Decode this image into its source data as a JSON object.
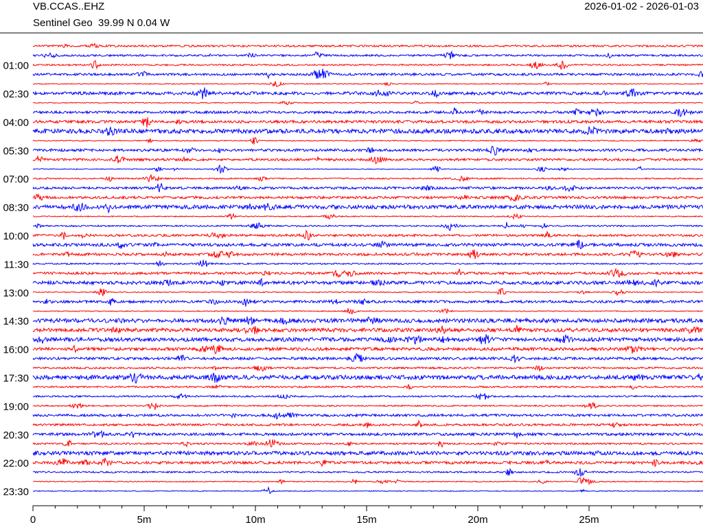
{
  "chart_data": {
    "type": "helicorder",
    "title": "VB.CCAS..EHZ",
    "subtitle": "Sentinel Geo  39.99 N 0.04 W",
    "date_range": "2026-01-02 - 2026-01-03",
    "categories": [
      null,
      null,
      "01:00",
      null,
      null,
      "02:30",
      null,
      null,
      "04:00",
      null,
      null,
      "05:30",
      null,
      null,
      "07:00",
      null,
      null,
      "08:30",
      null,
      null,
      "10:00",
      null,
      null,
      "11:30",
      null,
      null,
      "13:00",
      null,
      null,
      "14:30",
      null,
      null,
      "16:00",
      null,
      null,
      "17:30",
      null,
      null,
      "19:00",
      null,
      null,
      "20:30",
      null,
      null,
      "22:00",
      null,
      null,
      "23:30"
    ],
    "colors": [
      "#ff0000",
      "#0000ff"
    ],
    "xlim": [
      0,
      30
    ],
    "xticks": [
      0,
      {
        "value": 5,
        "label": "5m"
      },
      {
        "value": 10,
        "label": "10m"
      },
      {
        "value": 15,
        "label": "15m"
      },
      {
        "value": 20,
        "label": "20m"
      },
      {
        "value": 25,
        "label": "25m"
      }
    ]
  }
}
